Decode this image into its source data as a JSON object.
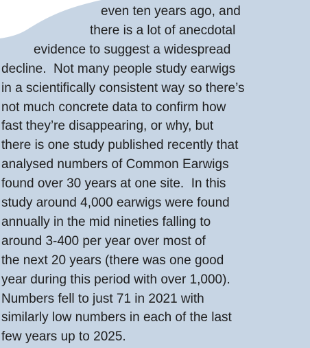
{
  "paragraph": {
    "lines": [
      "even ten years ago, and",
      "there is a lot of anecdotal",
      "evidence to suggest a widespread",
      "decline.  Not many people study earwigs",
      "in a scientifically consistent way so there’s",
      "not much concrete data to confirm how",
      "fast they’re disappearing, or why, but",
      "there is one study published recently that",
      "analysed numbers of Common Earwigs",
      "found over 30 years at one site.  In this",
      "study around 4,000 earwigs were found",
      "annually in the mid nineties falling to",
      "around 3-400 per year over most of",
      "the next 20 years (there was one good",
      "year during this period with over 1,000).",
      "Numbers fell to just 71 in 2021 with",
      "similarly low numbers in each of the last",
      "few years up to 2025."
    ]
  }
}
